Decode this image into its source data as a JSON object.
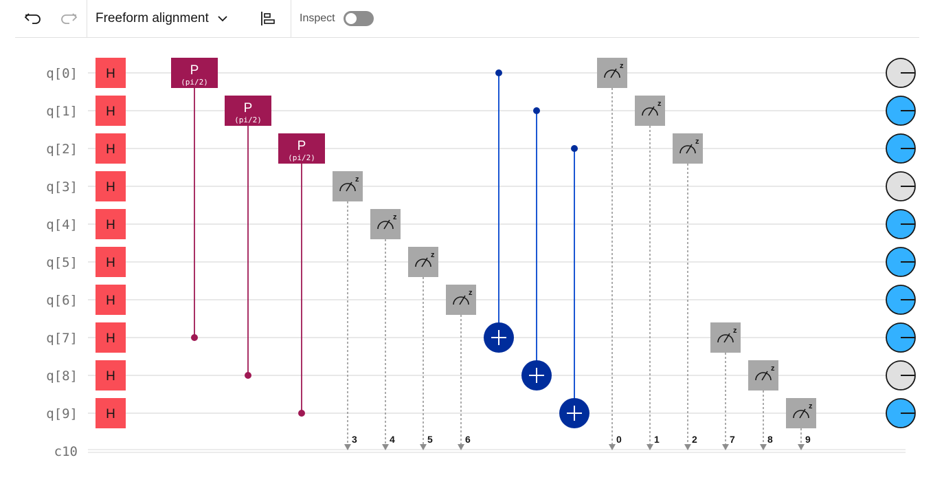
{
  "toolbar": {
    "undo_icon": "undo-icon",
    "redo_icon": "redo-icon",
    "alignment_label": "Freeform alignment",
    "align_icon": "align-left-icon",
    "inspect_label": "Inspect",
    "inspect_enabled": false
  },
  "circuit": {
    "qubits": [
      "q[0]",
      "q[1]",
      "q[2]",
      "q[3]",
      "q[4]",
      "q[5]",
      "q[6]",
      "q[7]",
      "q[8]",
      "q[9]"
    ],
    "classical_register": "c10",
    "hadamard_label": "H",
    "phase_gates": [
      {
        "label": "P",
        "param": "(pi/2)",
        "target": 0,
        "control": 7
      },
      {
        "label": "P",
        "param": "(pi/2)",
        "target": 1,
        "control": 8
      },
      {
        "label": "P",
        "param": "(pi/2)",
        "target": 2,
        "control": 9
      }
    ],
    "cnot_gates": [
      {
        "control": 0,
        "target": 7
      },
      {
        "control": 1,
        "target": 8
      },
      {
        "control": 2,
        "target": 9
      }
    ],
    "measurements": [
      {
        "qubit": 3,
        "bit": "3"
      },
      {
        "qubit": 4,
        "bit": "4"
      },
      {
        "qubit": 5,
        "bit": "5"
      },
      {
        "qubit": 6,
        "bit": "6"
      },
      {
        "qubit": 0,
        "bit": "0"
      },
      {
        "qubit": 1,
        "bit": "1"
      },
      {
        "qubit": 2,
        "bit": "2"
      },
      {
        "qubit": 7,
        "bit": "7"
      },
      {
        "qubit": 8,
        "bit": "8"
      },
      {
        "qubit": 9,
        "bit": "9"
      }
    ],
    "measure_basis": "z",
    "qubit_states": [
      "off",
      "on",
      "on",
      "off",
      "on",
      "on",
      "on",
      "on",
      "off",
      "on"
    ],
    "colors": {
      "hadamard": "#fa4d56",
      "phase": "#9f1853",
      "cnot": "#002d9c",
      "cnot_line": "#0043ce",
      "measure": "#a8a8a8",
      "state_on": "#33b1ff",
      "state_off": "#e0e0e0",
      "wire": "#e0e0e0"
    }
  }
}
